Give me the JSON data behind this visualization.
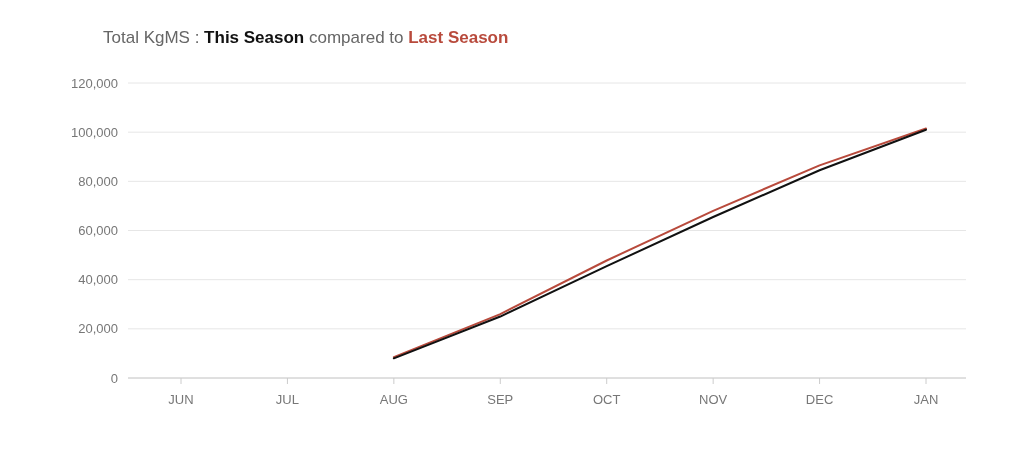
{
  "chart_data": {
    "type": "line",
    "title": "Total KgMS :",
    "annotations": [
      "compared to"
    ],
    "categories": [
      "JUN",
      "JUL",
      "AUG",
      "SEP",
      "OCT",
      "NOV",
      "DEC",
      "JAN"
    ],
    "series": [
      {
        "name": "This Season",
        "color": "#111111",
        "values": [
          null,
          null,
          8000,
          25000,
          45500,
          65500,
          84500,
          101000
        ]
      },
      {
        "name": "Last Season",
        "color": "#b84a3c",
        "values": [
          null,
          null,
          8500,
          26000,
          47800,
          68000,
          86500,
          101500
        ]
      }
    ],
    "ylim": [
      0,
      120000
    ],
    "yticks": [
      {
        "value": 0,
        "label": "0"
      },
      {
        "value": 20000,
        "label": "20,000"
      },
      {
        "value": 40000,
        "label": "40,000"
      },
      {
        "value": 60000,
        "label": "60,000"
      },
      {
        "value": 80000,
        "label": "80,000"
      },
      {
        "value": 100000,
        "label": "100,000"
      },
      {
        "value": 120000,
        "label": "120,000"
      }
    ],
    "grid": "y",
    "legend": "top left",
    "marker": "none",
    "line_style": "solid"
  }
}
